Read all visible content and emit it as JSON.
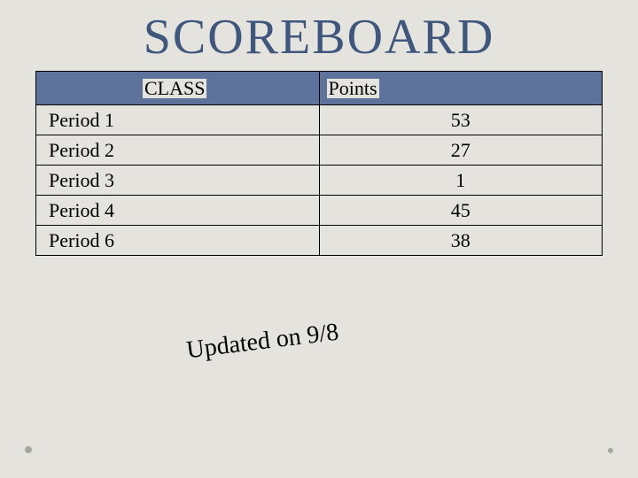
{
  "title": "SCOREBOARD",
  "table": {
    "type": "table",
    "header_bg": "#5d739c",
    "border_color": "#000000",
    "cell_bg": "#e4e3de",
    "font_family": "Georgia",
    "header_fontsize": 22,
    "cell_fontsize": 22,
    "columns": [
      "CLASS",
      "Points"
    ],
    "rows": [
      {
        "class": "Period 1",
        "points": "53"
      },
      {
        "class": "Period 2",
        "points": "27"
      },
      {
        "class": "Period 3",
        "points": "1"
      },
      {
        "class": "Period 4",
        "points": "45"
      },
      {
        "class": "Period 6",
        "points": "38"
      }
    ]
  },
  "updated_text": "Updated on 9/8",
  "background_color": "#e4e3de",
  "title_color": "#3f577c",
  "title_fontsize": 56
}
